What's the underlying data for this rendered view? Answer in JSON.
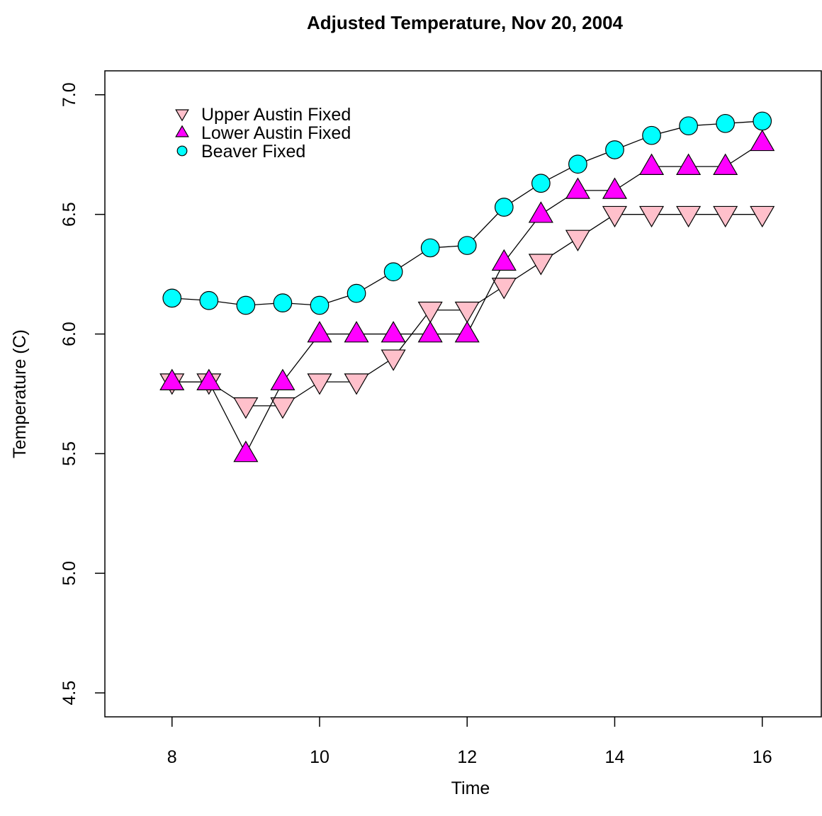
{
  "chart_data": {
    "type": "line",
    "title": "Adjusted Temperature, Nov 20, 2004",
    "x_label": "Time",
    "y_label": "Temperature (C)",
    "x": [
      8,
      8.5,
      9,
      9.5,
      10,
      10.5,
      11,
      11.5,
      12,
      12.5,
      13,
      13.5,
      14,
      14.5,
      15,
      15.5,
      16
    ],
    "series": [
      {
        "name": "Upper Austin Fixed",
        "color": "#ffc0cb",
        "marker": "triangle-down",
        "values": [
          5.8,
          5.8,
          5.7,
          5.7,
          5.8,
          5.8,
          5.9,
          6.1,
          6.1,
          6.2,
          6.3,
          6.4,
          6.5,
          6.5,
          6.5,
          6.5,
          6.5
        ]
      },
      {
        "name": "Lower Austin Fixed",
        "color": "#ff00ff",
        "marker": "triangle-up",
        "values": [
          5.8,
          5.8,
          5.5,
          5.8,
          6.0,
          6.0,
          6.0,
          6.0,
          6.0,
          6.3,
          6.5,
          6.6,
          6.6,
          6.7,
          6.7,
          6.7,
          6.8
        ]
      },
      {
        "name": "Beaver Fixed",
        "color": "#00ffff",
        "marker": "circle",
        "values": [
          6.15,
          6.14,
          6.12,
          6.13,
          6.12,
          6.17,
          6.26,
          6.36,
          6.37,
          6.53,
          6.63,
          6.71,
          6.77,
          6.83,
          6.87,
          6.88,
          6.89
        ]
      }
    ],
    "xlim": [
      7.09,
      16.8
    ],
    "ylim": [
      4.4,
      7.1
    ],
    "xticks": [
      8,
      10,
      12,
      14,
      16
    ],
    "yticks": [
      4.5,
      {
        "value": 5,
        "label": "5.0"
      },
      5.5,
      {
        "value": 6,
        "label": "6.0"
      },
      6.5,
      {
        "value": 7,
        "label": "7.0"
      }
    ],
    "legend": "top-left"
  }
}
